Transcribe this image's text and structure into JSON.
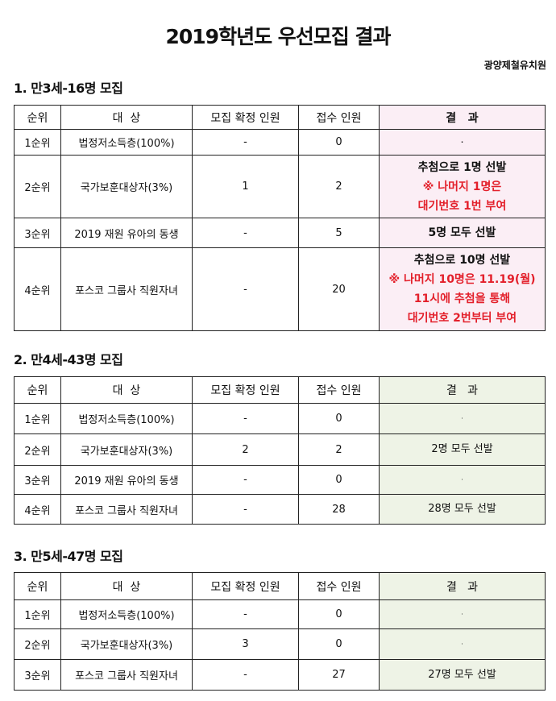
{
  "title": "2019학년도 우선모집 결과",
  "organization": "광양제철유치원",
  "headers": [
    "순위",
    "대  상",
    "모집 확정 인원",
    "접수 인원",
    "결   과"
  ],
  "colors": {
    "result_bg_section1": "#fbeef5",
    "result_bg_other": "#eef3e6",
    "red_text": "#e3202b"
  },
  "sections": [
    {
      "heading": "1. 만3세-16명 모집",
      "rows": [
        {
          "rank": "1순위",
          "target": "법정저소득층(100%)",
          "confirmed": "-",
          "applied": "0",
          "result": [
            {
              "text": "·",
              "red": false
            }
          ]
        },
        {
          "rank": "2순위",
          "target": "국가보훈대상자(3%)",
          "confirmed": "1",
          "applied": "2",
          "result": [
            {
              "text": "추첨으로 1명 선발",
              "red": false
            },
            {
              "text": "※ 나머지 1명은",
              "red": true
            },
            {
              "text": "대기번호 1번 부여",
              "red": true
            }
          ]
        },
        {
          "rank": "3순위",
          "target": "2019 재원 유아의 동생",
          "confirmed": "-",
          "applied": "5",
          "result": [
            {
              "text": "5명 모두 선발",
              "red": false
            }
          ]
        },
        {
          "rank": "4순위",
          "target": "포스코 그룹사 직원자녀",
          "confirmed": "-",
          "applied": "20",
          "result": [
            {
              "text": "추첨으로 10명 선발",
              "red": false
            },
            {
              "text": "※ 나머지 10명은 11.19(월)",
              "red": true
            },
            {
              "text": "11시에 추첨을 통해",
              "red": true
            },
            {
              "text": "대기번호 2번부터 부여",
              "red": true
            }
          ]
        }
      ]
    },
    {
      "heading": "2. 만4세-43명 모집",
      "rows": [
        {
          "rank": "1순위",
          "target": "법정저소득층(100%)",
          "confirmed": "-",
          "applied": "0",
          "result": [
            {
              "text": "·",
              "red": false
            }
          ]
        },
        {
          "rank": "2순위",
          "target": "국가보훈대상자(3%)",
          "confirmed": "2",
          "applied": "2",
          "result": [
            {
              "text": "2명 모두 선발",
              "red": false
            }
          ]
        },
        {
          "rank": "3순위",
          "target": "2019 재원 유아의 동생",
          "confirmed": "-",
          "applied": "0",
          "result": [
            {
              "text": "·",
              "red": false
            }
          ]
        },
        {
          "rank": "4순위",
          "target": "포스코 그룹사 직원자녀",
          "confirmed": "-",
          "applied": "28",
          "result": [
            {
              "text": "28명 모두 선발",
              "red": false
            }
          ]
        }
      ]
    },
    {
      "heading": "3. 만5세-47명 모집",
      "rows": [
        {
          "rank": "1순위",
          "target": "법정저소득층(100%)",
          "confirmed": "-",
          "applied": "0",
          "result": [
            {
              "text": "·",
              "red": false
            }
          ]
        },
        {
          "rank": "2순위",
          "target": "국가보훈대상자(3%)",
          "confirmed": "3",
          "applied": "0",
          "result": [
            {
              "text": "·",
              "red": false
            }
          ]
        },
        {
          "rank": "3순위",
          "target": "포스코 그룹사 직원자녀",
          "confirmed": "-",
          "applied": "27",
          "result": [
            {
              "text": "27명 모두 선발",
              "red": false
            }
          ]
        }
      ]
    }
  ]
}
